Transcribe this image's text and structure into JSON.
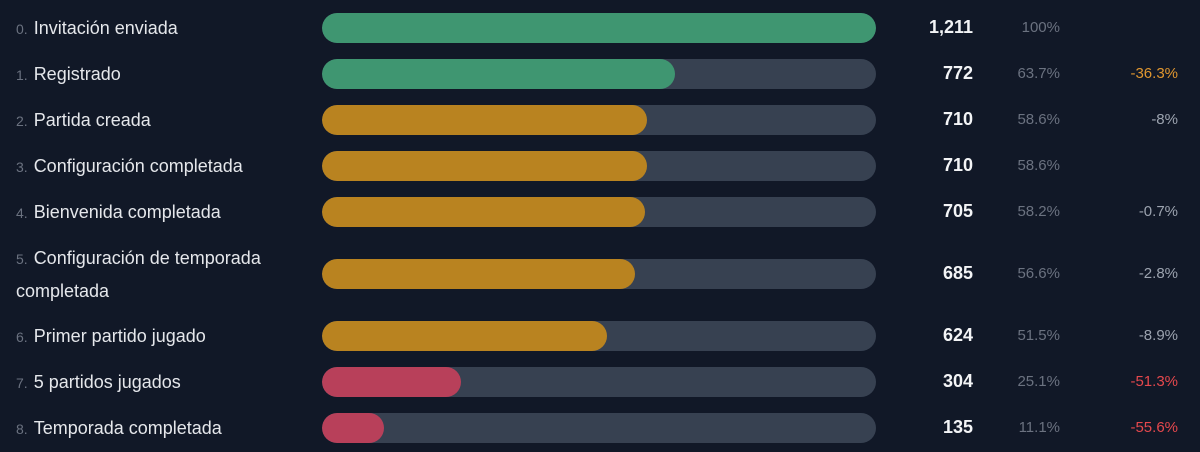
{
  "colors": {
    "green": "#3f9671",
    "amber": "#b98320",
    "red": "#b8405a",
    "track": "#374151",
    "delta_neutral": "#9ca3af",
    "delta_orange": "#e0962f",
    "delta_red": "#e5484d"
  },
  "chart_data": {
    "type": "bar",
    "orientation": "horizontal",
    "max": 1211,
    "rows": [
      {
        "index": "0.",
        "label": "Invitación enviada",
        "value": 1211,
        "count": "1,211",
        "percent": "100%",
        "delta": "",
        "color": "green",
        "delta_color": "delta_neutral"
      },
      {
        "index": "1.",
        "label": "Registrado",
        "value": 772,
        "count": "772",
        "percent": "63.7%",
        "delta": "-36.3%",
        "color": "green",
        "delta_color": "delta_orange"
      },
      {
        "index": "2.",
        "label": "Partida creada",
        "value": 710,
        "count": "710",
        "percent": "58.6%",
        "delta": "-8%",
        "color": "amber",
        "delta_color": "delta_neutral"
      },
      {
        "index": "3.",
        "label": "Configuración completada",
        "value": 710,
        "count": "710",
        "percent": "58.6%",
        "delta": "",
        "color": "amber",
        "delta_color": "delta_neutral"
      },
      {
        "index": "4.",
        "label": "Bienvenida completada",
        "value": 705,
        "count": "705",
        "percent": "58.2%",
        "delta": "-0.7%",
        "color": "amber",
        "delta_color": "delta_neutral"
      },
      {
        "index": "5.",
        "label": "Configuración de temporada completada",
        "value": 685,
        "count": "685",
        "percent": "56.6%",
        "delta": "-2.8%",
        "color": "amber",
        "delta_color": "delta_neutral"
      },
      {
        "index": "6.",
        "label": "Primer partido jugado",
        "value": 624,
        "count": "624",
        "percent": "51.5%",
        "delta": "-8.9%",
        "color": "amber",
        "delta_color": "delta_neutral"
      },
      {
        "index": "7.",
        "label": "5 partidos jugados",
        "value": 304,
        "count": "304",
        "percent": "25.1%",
        "delta": "-51.3%",
        "color": "red",
        "delta_color": "delta_red"
      },
      {
        "index": "8.",
        "label": "Temporada completada",
        "value": 135,
        "count": "135",
        "percent": "11.1%",
        "delta": "-55.6%",
        "color": "red",
        "delta_color": "delta_red"
      }
    ]
  }
}
